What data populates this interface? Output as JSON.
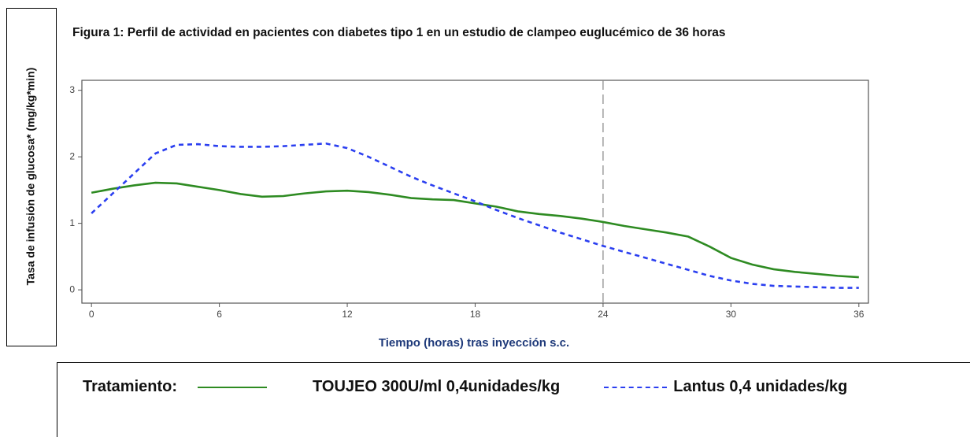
{
  "chart_data": {
    "type": "line",
    "title": "Figura 1: Perfil de actividad en pacientes con diabetes tipo 1 en un estudio de clampeo euglucémico de 36 horas",
    "y_label": "Tasa de infusión de glucosa* (mg/kg*min)",
    "x_label": "Tiempo (horas) tras inyección s.c.",
    "legend_title": "Tratamiento:",
    "x": [
      0,
      1,
      2,
      3,
      4,
      5,
      6,
      7,
      8,
      9,
      10,
      11,
      12,
      13,
      14,
      15,
      16,
      17,
      18,
      19,
      20,
      21,
      22,
      23,
      24,
      25,
      26,
      27,
      28,
      29,
      30,
      31,
      32,
      33,
      34,
      35,
      36
    ],
    "series": [
      {
        "name": "TOUJEO 300U/ml  0,4unidades/kg",
        "color": "#2e8b22",
        "dash": false,
        "values": [
          1.46,
          1.52,
          1.57,
          1.61,
          1.6,
          1.55,
          1.5,
          1.44,
          1.4,
          1.41,
          1.45,
          1.48,
          1.49,
          1.47,
          1.43,
          1.38,
          1.36,
          1.35,
          1.3,
          1.25,
          1.18,
          1.14,
          1.11,
          1.07,
          1.02,
          0.96,
          0.91,
          0.86,
          0.8,
          0.65,
          0.48,
          0.38,
          0.31,
          0.27,
          0.24,
          0.21,
          0.19
        ]
      },
      {
        "name": "Lantus 0,4 unidades/kg",
        "color": "#2b3ff0",
        "dash": true,
        "values": [
          1.15,
          1.45,
          1.75,
          2.05,
          2.18,
          2.19,
          2.16,
          2.15,
          2.15,
          2.16,
          2.18,
          2.2,
          2.13,
          2.0,
          1.85,
          1.7,
          1.57,
          1.45,
          1.33,
          1.2,
          1.08,
          0.97,
          0.86,
          0.76,
          0.66,
          0.57,
          0.48,
          0.39,
          0.3,
          0.21,
          0.14,
          0.09,
          0.06,
          0.05,
          0.04,
          0.03,
          0.03
        ]
      }
    ],
    "vline": 24,
    "xlim": [
      -0.45,
      36.45
    ],
    "ylim": [
      -0.2,
      3.15
    ],
    "xticks": [
      0,
      6,
      12,
      18,
      24,
      30,
      36
    ],
    "yticks": [
      0,
      1,
      2,
      3
    ]
  }
}
